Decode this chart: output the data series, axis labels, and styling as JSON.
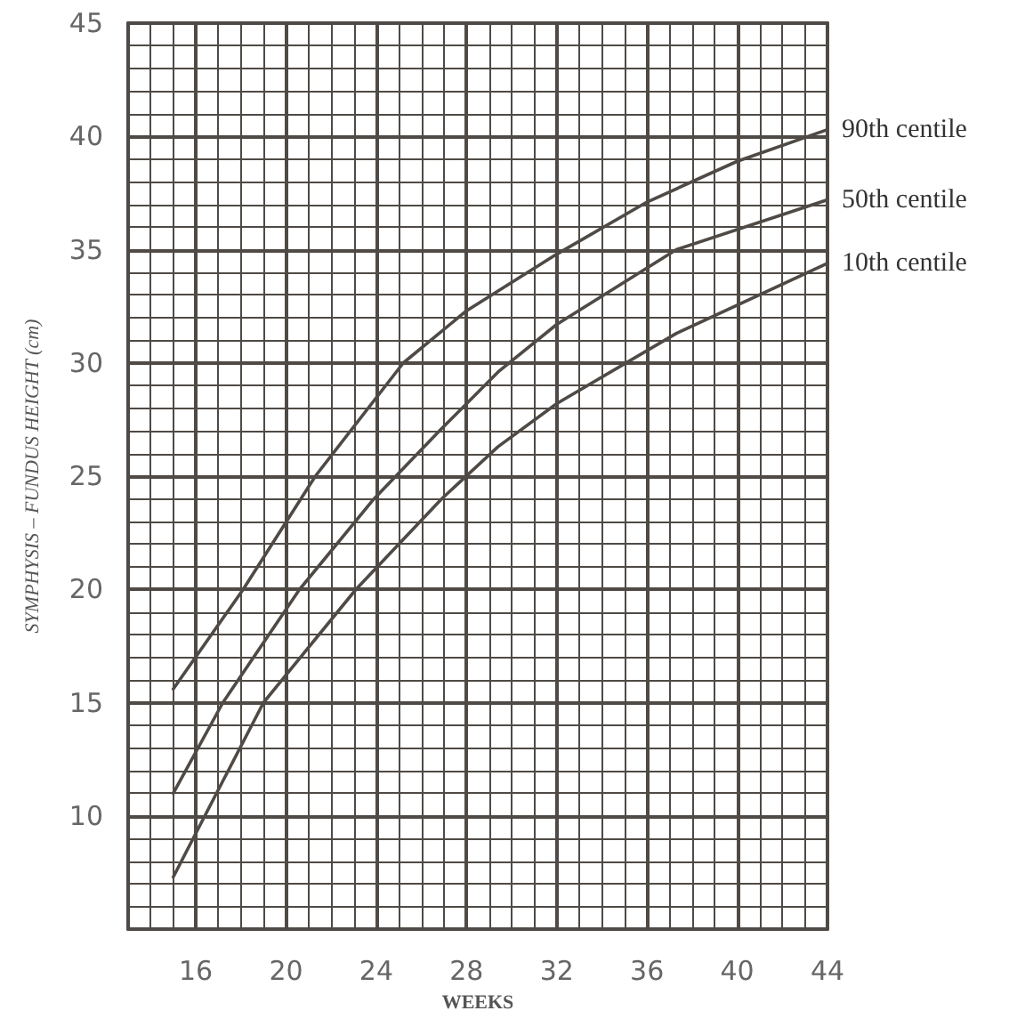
{
  "chart_data": {
    "type": "line",
    "xlabel": "WEEKS",
    "ylabel": "SYMPHYSIS – FUNDUS HEIGHT (cm)",
    "xlim": [
      13,
      44
    ],
    "ylim": [
      5,
      45
    ],
    "xticks": [
      16,
      20,
      24,
      28,
      32,
      36,
      40,
      44
    ],
    "yticks": [
      10,
      15,
      20,
      25,
      30,
      35,
      40,
      45
    ],
    "grid": true,
    "legend": false,
    "marker": "none",
    "line_style": "solid",
    "series": [
      {
        "name": "90th centile",
        "color": "#4f4a45",
        "x": [
          15,
          18.1,
          21.3,
          25.2,
          28,
          32,
          36,
          40,
          44
        ],
        "values": [
          15.6,
          20,
          25,
          30,
          32.3,
          34.8,
          37.1,
          38.9,
          40.3
        ]
      },
      {
        "name": "50th centile",
        "color": "#4f4a45",
        "x": [
          15,
          17.2,
          20.6,
          23.9,
          26.9,
          29.4,
          32,
          37.3,
          44
        ],
        "values": [
          11,
          15,
          20,
          24,
          27.1,
          29.6,
          31.7,
          35,
          37.2
        ]
      },
      {
        "name": "10th centile",
        "color": "#4f4a45",
        "x": [
          15,
          16.4,
          19,
          23.1,
          26.9,
          29.4,
          32,
          37.3,
          44
        ],
        "values": [
          7.3,
          10,
          15,
          20,
          24,
          26.3,
          28.2,
          31.3,
          34.4
        ]
      }
    ]
  }
}
